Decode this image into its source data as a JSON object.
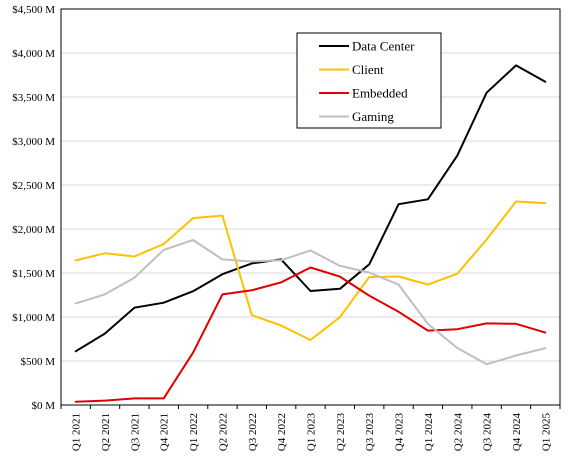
{
  "chart_data": {
    "type": "line",
    "title": "",
    "xlabel": "",
    "ylabel": "",
    "categories": [
      "Q1 2021",
      "Q2 2021",
      "Q3 2021",
      "Q4 2021",
      "Q1 2022",
      "Q2 2022",
      "Q3 2022",
      "Q4 2022",
      "Q1 2023",
      "Q2 2023",
      "Q3 2023",
      "Q4 2023",
      "Q1 2024",
      "Q2 2024",
      "Q3 2024",
      "Q4 2024",
      "Q1 2025"
    ],
    "ylim": [
      0,
      4500
    ],
    "y_ticks": [
      0,
      500,
      1000,
      1500,
      2000,
      2500,
      3000,
      3500,
      4000,
      4500
    ],
    "y_tick_labels": [
      "$0 M",
      "$500 M",
      "$1,000 M",
      "$1,500 M",
      "$2,000 M",
      "$2,500 M",
      "$3,000 M",
      "$3,500 M",
      "$4,000 M",
      "$4,500 M"
    ],
    "grid": true,
    "legend": "top-right",
    "series": [
      {
        "name": "Data Center",
        "color": "#000000",
        "values": [
          610,
          813,
          1106,
          1163,
          1293,
          1486,
          1609,
          1655,
          1295,
          1321,
          1598,
          2282,
          2337,
          2834,
          3549,
          3859,
          3674
        ]
      },
      {
        "name": "Client",
        "color": "#ffc000",
        "values": [
          1643,
          1725,
          1687,
          1829,
          2124,
          2152,
          1022,
          903,
          739,
          998,
          1453,
          1461,
          1368,
          1492,
          1881,
          2313,
          2294
        ]
      },
      {
        "name": "Embedded",
        "color": "#e00000",
        "values": [
          37,
          50,
          75,
          75,
          595,
          1257,
          1303,
          1393,
          1562,
          1459,
          1243,
          1059,
          846,
          861,
          927,
          923,
          823
        ]
      },
      {
        "name": "Gaming",
        "color": "#bfbfbf",
        "values": [
          1155,
          1258,
          1447,
          1763,
          1875,
          1655,
          1631,
          1644,
          1757,
          1581,
          1506,
          1368,
          922,
          648,
          462,
          563,
          647
        ]
      }
    ]
  }
}
